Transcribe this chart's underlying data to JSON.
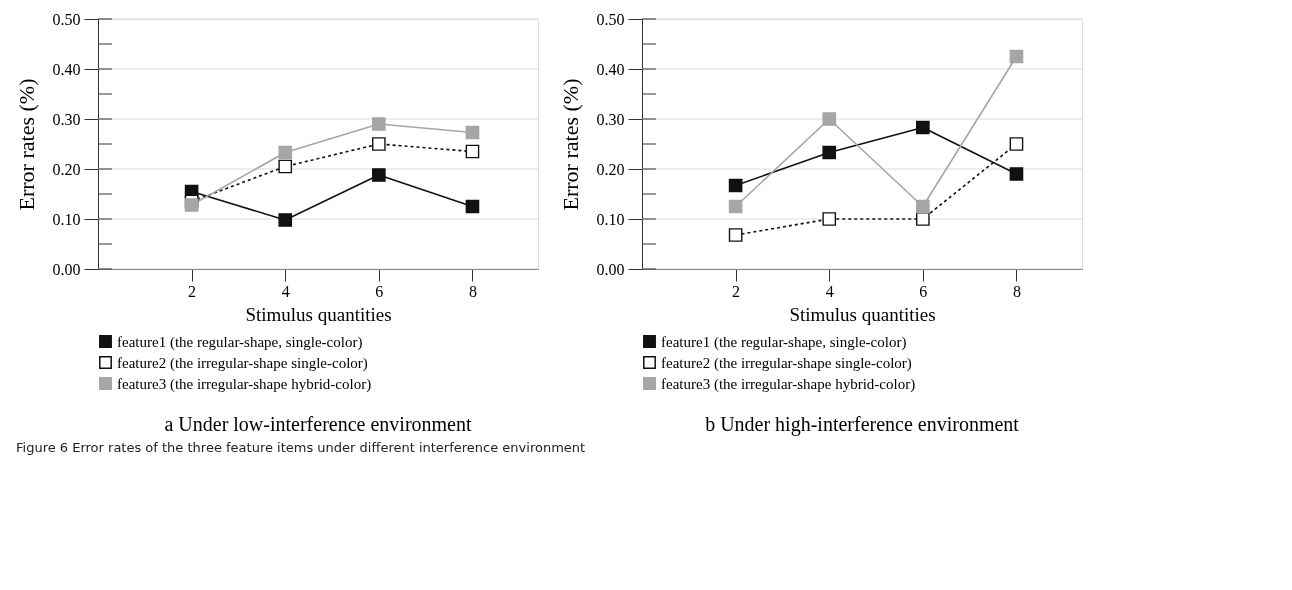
{
  "chart_data": [
    {
      "type": "line",
      "title": "a Under low-interference environment",
      "xlabel": "Stimulus quantities",
      "ylabel": "Error rates (%)",
      "x": [
        2,
        4,
        6,
        8
      ],
      "xlim": [
        0,
        9.4
      ],
      "xticks": [
        2,
        4,
        6,
        8
      ],
      "ylim": [
        0,
        0.5
      ],
      "yticks": [
        {
          "value": 0,
          "label": "0.00"
        },
        {
          "value": 0.05,
          "label": null
        },
        {
          "value": 0.1,
          "label": "0.10"
        },
        {
          "value": 0.15,
          "label": null
        },
        {
          "value": 0.2,
          "label": "0.20"
        },
        {
          "value": 0.25,
          "label": null
        },
        {
          "value": 0.3,
          "label": "0.30"
        },
        {
          "value": 0.35,
          "label": null
        },
        {
          "value": 0.4,
          "label": "0.40"
        },
        {
          "value": 0.45,
          "label": null
        },
        {
          "value": 0.5,
          "label": "0.50"
        }
      ],
      "grid": "y",
      "legend": "bottom",
      "marker": "square",
      "series": [
        {
          "name": "feature1 (the regular-shape, single-color)",
          "color": "#111111",
          "line_style": "solid",
          "values": [
            0.155,
            0.098,
            0.188,
            0.125
          ]
        },
        {
          "name": "feature2 (the irregular-shape single-color)",
          "color": "#111111",
          "line_style": "dashed",
          "values": [
            0.135,
            0.205,
            0.25,
            0.235
          ]
        },
        {
          "name": "feature3 (the irregular-shape hybrid-color)",
          "color": "#a6a6a6",
          "line_style": "solid",
          "values": [
            0.128,
            0.233,
            0.29,
            0.273
          ]
        }
      ],
      "annotations": [
        "Figure 6 Error rates of the three feature items under different interference environment"
      ]
    },
    {
      "type": "line",
      "title": "b Under high-interference environment",
      "xlabel": "Stimulus quantities",
      "ylabel": "Error rates (%)",
      "x": [
        2,
        4,
        6,
        8
      ],
      "xlim": [
        0,
        9.4
      ],
      "xticks": [
        2,
        4,
        6,
        8
      ],
      "ylim": [
        0,
        0.5
      ],
      "yticks": [
        {
          "value": 0,
          "label": "0.00"
        },
        {
          "value": 0.05,
          "label": null
        },
        {
          "value": 0.1,
          "label": "0.10"
        },
        {
          "value": 0.15,
          "label": null
        },
        {
          "value": 0.2,
          "label": "0.20"
        },
        {
          "value": 0.25,
          "label": null
        },
        {
          "value": 0.3,
          "label": "0.30"
        },
        {
          "value": 0.35,
          "label": null
        },
        {
          "value": 0.4,
          "label": "0.40"
        },
        {
          "value": 0.45,
          "label": null
        },
        {
          "value": 0.5,
          "label": "0.50"
        }
      ],
      "grid": "y",
      "legend": "bottom",
      "marker": "square",
      "series": [
        {
          "name": "feature1 (the regular-shape, single-color)",
          "color": "#111111",
          "line_style": "solid",
          "values": [
            0.167,
            0.233,
            0.283,
            0.19
          ]
        },
        {
          "name": "feature2 (the irregular-shape single-color)",
          "color": "#111111",
          "line_style": "dashed",
          "values": [
            0.068,
            0.1,
            0.1,
            0.25
          ]
        },
        {
          "name": "feature3 (the irregular-shape hybrid-color)",
          "color": "#a6a6a6",
          "line_style": "solid",
          "values": [
            0.125,
            0.3,
            0.125,
            0.425
          ]
        }
      ]
    }
  ]
}
